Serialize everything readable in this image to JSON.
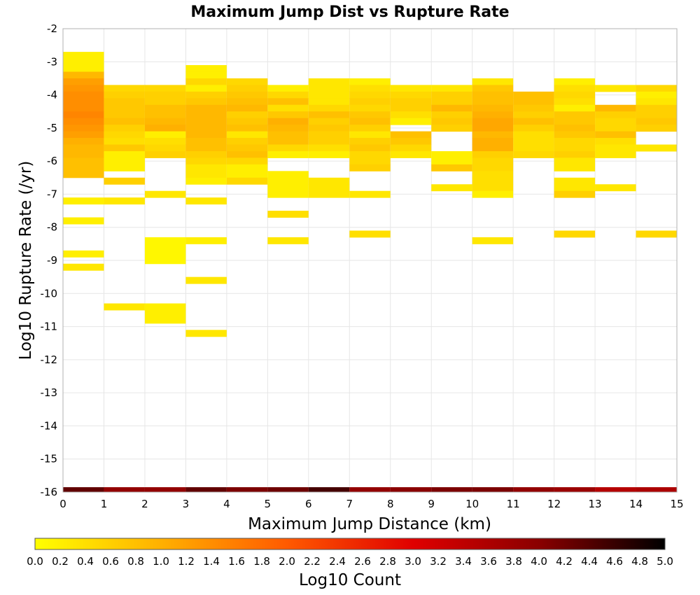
{
  "chart_data": {
    "type": "heatmap",
    "title": "Maximum Jump Dist vs Rupture Rate",
    "xlabel": "Maximum Jump Distance (km)",
    "ylabel": "Log10 Rupture Rate (/yr)",
    "xlim": [
      0,
      15
    ],
    "ylim": [
      -16,
      -2
    ],
    "x_ticks": [
      "0",
      "1",
      "2",
      "3",
      "4",
      "5",
      "6",
      "7",
      "8",
      "9",
      "10",
      "11",
      "12",
      "13",
      "14",
      "15"
    ],
    "y_ticks": [
      "-2",
      "-3",
      "-4",
      "-5",
      "-6",
      "-7",
      "-8",
      "-9",
      "-10",
      "-11",
      "-12",
      "-13",
      "-14",
      "-15",
      "-16"
    ],
    "x_bin_width": 1,
    "y_bin_height": 0.2,
    "colorbar": {
      "label": "Log10 Count",
      "min": 0.0,
      "max": 5.0,
      "tick_labels": [
        "0.0",
        "0.2",
        "0.4",
        "0.6",
        "0.8",
        "1.0",
        "1.2",
        "1.4",
        "1.6",
        "1.8",
        "2.0",
        "2.2",
        "2.4",
        "2.6",
        "2.8",
        "3.0",
        "3.2",
        "3.4",
        "3.6",
        "3.8",
        "4.0",
        "4.2",
        "4.4",
        "4.6",
        "4.8",
        "5.0"
      ],
      "colors": [
        "#ffff00",
        "#ffb000",
        "#ff5a00",
        "#e00000",
        "#8a0000",
        "#000000"
      ]
    },
    "cells": [
      {
        "x": 0,
        "y": -2.7,
        "v": 0.2
      },
      {
        "x": 0,
        "y": -2.9,
        "v": 0.2
      },
      {
        "x": 0,
        "y": -3.1,
        "v": 0.2
      },
      {
        "x": 0,
        "y": -3.3,
        "v": 0.9
      },
      {
        "x": 0,
        "y": -3.5,
        "v": 1.2
      },
      {
        "x": 0,
        "y": -3.7,
        "v": 1.3
      },
      {
        "x": 0,
        "y": -3.9,
        "v": 1.4
      },
      {
        "x": 0,
        "y": -4.1,
        "v": 1.4
      },
      {
        "x": 0,
        "y": -4.3,
        "v": 1.4
      },
      {
        "x": 0,
        "y": -4.5,
        "v": 1.5
      },
      {
        "x": 0,
        "y": -4.7,
        "v": 1.4
      },
      {
        "x": 0,
        "y": -4.9,
        "v": 1.3
      },
      {
        "x": 0,
        "y": -5.1,
        "v": 1.2
      },
      {
        "x": 0,
        "y": -5.3,
        "v": 1.0
      },
      {
        "x": 0,
        "y": -5.5,
        "v": 0.9
      },
      {
        "x": 0,
        "y": -5.7,
        "v": 0.9
      },
      {
        "x": 0,
        "y": -5.9,
        "v": 0.8
      },
      {
        "x": 0,
        "y": -6.1,
        "v": 0.8
      },
      {
        "x": 0,
        "y": -6.3,
        "v": 0.8
      },
      {
        "x": 0,
        "y": -7.1,
        "v": 0.2
      },
      {
        "x": 0,
        "y": -7.7,
        "v": 0.2
      },
      {
        "x": 0,
        "y": -8.7,
        "v": 0.2
      },
      {
        "x": 0,
        "y": -9.1,
        "v": 0.3
      },
      {
        "x": 1,
        "y": -3.7,
        "v": 0.5
      },
      {
        "x": 1,
        "y": -3.9,
        "v": 0.6
      },
      {
        "x": 1,
        "y": -4.1,
        "v": 0.7
      },
      {
        "x": 1,
        "y": -4.3,
        "v": 0.7
      },
      {
        "x": 1,
        "y": -4.5,
        "v": 0.7
      },
      {
        "x": 1,
        "y": -4.7,
        "v": 0.8
      },
      {
        "x": 1,
        "y": -4.9,
        "v": 0.6
      },
      {
        "x": 1,
        "y": -5.1,
        "v": 0.5
      },
      {
        "x": 1,
        "y": -5.3,
        "v": 0.4
      },
      {
        "x": 1,
        "y": -5.5,
        "v": 0.7
      },
      {
        "x": 1,
        "y": -5.7,
        "v": 0.2
      },
      {
        "x": 1,
        "y": -5.9,
        "v": 0.2
      },
      {
        "x": 1,
        "y": -6.1,
        "v": 0.2
      },
      {
        "x": 1,
        "y": -6.5,
        "v": 0.6
      },
      {
        "x": 1,
        "y": -7.1,
        "v": 0.3
      },
      {
        "x": 1,
        "y": -10.3,
        "v": 0.3
      },
      {
        "x": 2,
        "y": -3.7,
        "v": 0.5
      },
      {
        "x": 2,
        "y": -3.9,
        "v": 0.6
      },
      {
        "x": 2,
        "y": -4.1,
        "v": 0.6
      },
      {
        "x": 2,
        "y": -4.3,
        "v": 0.8
      },
      {
        "x": 2,
        "y": -4.5,
        "v": 0.8
      },
      {
        "x": 2,
        "y": -4.7,
        "v": 0.9
      },
      {
        "x": 2,
        "y": -4.9,
        "v": 1.0
      },
      {
        "x": 2,
        "y": -5.1,
        "v": 0.2
      },
      {
        "x": 2,
        "y": -5.3,
        "v": 0.4
      },
      {
        "x": 2,
        "y": -5.5,
        "v": 0.5
      },
      {
        "x": 2,
        "y": -5.7,
        "v": 0.6
      },
      {
        "x": 2,
        "y": -6.9,
        "v": 0.3
      },
      {
        "x": 2,
        "y": -8.3,
        "v": 0.1
      },
      {
        "x": 2,
        "y": -8.5,
        "v": 0.1
      },
      {
        "x": 2,
        "y": -8.7,
        "v": 0.1
      },
      {
        "x": 2,
        "y": -8.9,
        "v": 0.1
      },
      {
        "x": 2,
        "y": -10.3,
        "v": 0.2
      },
      {
        "x": 2,
        "y": -10.5,
        "v": 0.2
      },
      {
        "x": 2,
        "y": -10.7,
        "v": 0.2
      },
      {
        "x": 3,
        "y": -3.1,
        "v": 0.2
      },
      {
        "x": 3,
        "y": -3.3,
        "v": 0.2
      },
      {
        "x": 3,
        "y": -3.5,
        "v": 0.5
      },
      {
        "x": 3,
        "y": -3.7,
        "v": 0.2
      },
      {
        "x": 3,
        "y": -3.9,
        "v": 0.6
      },
      {
        "x": 3,
        "y": -4.1,
        "v": 0.7
      },
      {
        "x": 3,
        "y": -4.3,
        "v": 0.9
      },
      {
        "x": 3,
        "y": -4.5,
        "v": 0.9
      },
      {
        "x": 3,
        "y": -4.7,
        "v": 0.9
      },
      {
        "x": 3,
        "y": -4.9,
        "v": 0.9
      },
      {
        "x": 3,
        "y": -5.1,
        "v": 0.9
      },
      {
        "x": 3,
        "y": -5.3,
        "v": 0.8
      },
      {
        "x": 3,
        "y": -5.5,
        "v": 0.8
      },
      {
        "x": 3,
        "y": -5.7,
        "v": 0.6
      },
      {
        "x": 3,
        "y": -5.9,
        "v": 0.5
      },
      {
        "x": 3,
        "y": -6.1,
        "v": 0.3
      },
      {
        "x": 3,
        "y": -6.3,
        "v": 0.3
      },
      {
        "x": 3,
        "y": -6.5,
        "v": 0.2
      },
      {
        "x": 3,
        "y": -7.1,
        "v": 0.3
      },
      {
        "x": 3,
        "y": -8.3,
        "v": 0.2
      },
      {
        "x": 3,
        "y": -9.5,
        "v": 0.3
      },
      {
        "x": 3,
        "y": -11.1,
        "v": 0.3
      },
      {
        "x": 4,
        "y": -3.5,
        "v": 0.5
      },
      {
        "x": 4,
        "y": -3.7,
        "v": 0.6
      },
      {
        "x": 4,
        "y": -3.9,
        "v": 0.7
      },
      {
        "x": 4,
        "y": -4.1,
        "v": 0.8
      },
      {
        "x": 4,
        "y": -4.3,
        "v": 0.9
      },
      {
        "x": 4,
        "y": -4.5,
        "v": 0.6
      },
      {
        "x": 4,
        "y": -4.7,
        "v": 0.7
      },
      {
        "x": 4,
        "y": -4.9,
        "v": 0.8
      },
      {
        "x": 4,
        "y": -5.1,
        "v": 0.3
      },
      {
        "x": 4,
        "y": -5.3,
        "v": 0.6
      },
      {
        "x": 4,
        "y": -5.5,
        "v": 0.7
      },
      {
        "x": 4,
        "y": -5.7,
        "v": 0.8
      },
      {
        "x": 4,
        "y": -5.9,
        "v": 0.5
      },
      {
        "x": 4,
        "y": -6.1,
        "v": 0.2
      },
      {
        "x": 4,
        "y": -6.3,
        "v": 0.2
      },
      {
        "x": 4,
        "y": -6.5,
        "v": 0.5
      },
      {
        "x": 5,
        "y": -3.7,
        "v": 0.2
      },
      {
        "x": 5,
        "y": -3.9,
        "v": 0.5
      },
      {
        "x": 5,
        "y": -4.1,
        "v": 0.8
      },
      {
        "x": 5,
        "y": -4.3,
        "v": 0.4
      },
      {
        "x": 5,
        "y": -4.5,
        "v": 0.7
      },
      {
        "x": 5,
        "y": -4.7,
        "v": 1.0
      },
      {
        "x": 5,
        "y": -4.9,
        "v": 0.9
      },
      {
        "x": 5,
        "y": -5.1,
        "v": 0.8
      },
      {
        "x": 5,
        "y": -5.3,
        "v": 0.8
      },
      {
        "x": 5,
        "y": -5.5,
        "v": 0.5
      },
      {
        "x": 5,
        "y": -5.7,
        "v": 0.2
      },
      {
        "x": 5,
        "y": -6.3,
        "v": 0.2
      },
      {
        "x": 5,
        "y": -6.5,
        "v": 0.2
      },
      {
        "x": 5,
        "y": -6.7,
        "v": 0.2
      },
      {
        "x": 5,
        "y": -6.9,
        "v": 0.2
      },
      {
        "x": 5,
        "y": -7.5,
        "v": 0.4
      },
      {
        "x": 5,
        "y": -8.3,
        "v": 0.3
      },
      {
        "x": 6,
        "y": -3.5,
        "v": 0.3
      },
      {
        "x": 6,
        "y": -3.7,
        "v": 0.3
      },
      {
        "x": 6,
        "y": -3.9,
        "v": 0.3
      },
      {
        "x": 6,
        "y": -4.1,
        "v": 0.3
      },
      {
        "x": 6,
        "y": -4.3,
        "v": 0.5
      },
      {
        "x": 6,
        "y": -4.5,
        "v": 0.8
      },
      {
        "x": 6,
        "y": -4.7,
        "v": 0.6
      },
      {
        "x": 6,
        "y": -4.9,
        "v": 0.7
      },
      {
        "x": 6,
        "y": -5.1,
        "v": 0.6
      },
      {
        "x": 6,
        "y": -5.3,
        "v": 0.6
      },
      {
        "x": 6,
        "y": -5.5,
        "v": 0.4
      },
      {
        "x": 6,
        "y": -5.7,
        "v": 0.2
      },
      {
        "x": 6,
        "y": -6.5,
        "v": 0.3
      },
      {
        "x": 6,
        "y": -6.7,
        "v": 0.3
      },
      {
        "x": 6,
        "y": -6.9,
        "v": 0.3
      },
      {
        "x": 7,
        "y": -3.5,
        "v": 0.2
      },
      {
        "x": 7,
        "y": -3.7,
        "v": 0.4
      },
      {
        "x": 7,
        "y": -3.9,
        "v": 0.5
      },
      {
        "x": 7,
        "y": -4.1,
        "v": 0.6
      },
      {
        "x": 7,
        "y": -4.3,
        "v": 0.5
      },
      {
        "x": 7,
        "y": -4.5,
        "v": 0.7
      },
      {
        "x": 7,
        "y": -4.7,
        "v": 0.8
      },
      {
        "x": 7,
        "y": -4.9,
        "v": 0.6
      },
      {
        "x": 7,
        "y": -5.1,
        "v": 0.3
      },
      {
        "x": 7,
        "y": -5.3,
        "v": 0.6
      },
      {
        "x": 7,
        "y": -5.5,
        "v": 0.7
      },
      {
        "x": 7,
        "y": -5.7,
        "v": 0.5
      },
      {
        "x": 7,
        "y": -5.9,
        "v": 0.5
      },
      {
        "x": 7,
        "y": -6.1,
        "v": 0.6
      },
      {
        "x": 7,
        "y": -6.9,
        "v": 0.3
      },
      {
        "x": 7,
        "y": -8.1,
        "v": 0.4
      },
      {
        "x": 8,
        "y": -3.7,
        "v": 0.3
      },
      {
        "x": 8,
        "y": -3.9,
        "v": 0.5
      },
      {
        "x": 8,
        "y": -4.1,
        "v": 0.6
      },
      {
        "x": 8,
        "y": -4.3,
        "v": 0.6
      },
      {
        "x": 8,
        "y": -4.5,
        "v": 0.4
      },
      {
        "x": 8,
        "y": -4.7,
        "v": 0.2
      },
      {
        "x": 8,
        "y": -5.1,
        "v": 0.8
      },
      {
        "x": 8,
        "y": -5.3,
        "v": 0.7
      },
      {
        "x": 8,
        "y": -5.5,
        "v": 0.5
      },
      {
        "x": 8,
        "y": -5.7,
        "v": 0.3
      },
      {
        "x": 9,
        "y": -3.7,
        "v": 0.3
      },
      {
        "x": 9,
        "y": -3.9,
        "v": 0.6
      },
      {
        "x": 9,
        "y": -4.1,
        "v": 0.6
      },
      {
        "x": 9,
        "y": -4.3,
        "v": 0.9
      },
      {
        "x": 9,
        "y": -4.5,
        "v": 0.6
      },
      {
        "x": 9,
        "y": -4.7,
        "v": 0.7
      },
      {
        "x": 9,
        "y": -4.9,
        "v": 0.6
      },
      {
        "x": 9,
        "y": -5.7,
        "v": 0.2
      },
      {
        "x": 9,
        "y": -5.9,
        "v": 0.2
      },
      {
        "x": 9,
        "y": -6.1,
        "v": 0.7
      },
      {
        "x": 9,
        "y": -6.7,
        "v": 0.3
      },
      {
        "x": 10,
        "y": -3.5,
        "v": 0.3
      },
      {
        "x": 10,
        "y": -3.7,
        "v": 0.7
      },
      {
        "x": 10,
        "y": -3.9,
        "v": 0.8
      },
      {
        "x": 10,
        "y": -4.1,
        "v": 0.8
      },
      {
        "x": 10,
        "y": -4.3,
        "v": 0.9
      },
      {
        "x": 10,
        "y": -4.5,
        "v": 1.0
      },
      {
        "x": 10,
        "y": -4.7,
        "v": 1.1
      },
      {
        "x": 10,
        "y": -4.9,
        "v": 1.1
      },
      {
        "x": 10,
        "y": -5.1,
        "v": 0.9
      },
      {
        "x": 10,
        "y": -5.3,
        "v": 1.0
      },
      {
        "x": 10,
        "y": -5.5,
        "v": 1.0
      },
      {
        "x": 10,
        "y": -5.7,
        "v": 0.6
      },
      {
        "x": 10,
        "y": -5.9,
        "v": 0.5
      },
      {
        "x": 10,
        "y": -6.1,
        "v": 0.5
      },
      {
        "x": 10,
        "y": -6.3,
        "v": 0.4
      },
      {
        "x": 10,
        "y": -6.5,
        "v": 0.4
      },
      {
        "x": 10,
        "y": -6.7,
        "v": 0.4
      },
      {
        "x": 10,
        "y": -6.9,
        "v": 0.2
      },
      {
        "x": 10,
        "y": -8.3,
        "v": 0.3
      },
      {
        "x": 11,
        "y": -3.9,
        "v": 0.8
      },
      {
        "x": 11,
        "y": -4.1,
        "v": 0.8
      },
      {
        "x": 11,
        "y": -4.3,
        "v": 0.7
      },
      {
        "x": 11,
        "y": -4.5,
        "v": 0.6
      },
      {
        "x": 11,
        "y": -4.7,
        "v": 0.8
      },
      {
        "x": 11,
        "y": -4.9,
        "v": 0.6
      },
      {
        "x": 11,
        "y": -5.1,
        "v": 0.4
      },
      {
        "x": 11,
        "y": -5.3,
        "v": 0.4
      },
      {
        "x": 11,
        "y": -5.5,
        "v": 0.4
      },
      {
        "x": 11,
        "y": -5.7,
        "v": 0.5
      },
      {
        "x": 12,
        "y": -3.5,
        "v": 0.2
      },
      {
        "x": 12,
        "y": -3.7,
        "v": 0.4
      },
      {
        "x": 12,
        "y": -3.9,
        "v": 0.5
      },
      {
        "x": 12,
        "y": -4.1,
        "v": 0.4
      },
      {
        "x": 12,
        "y": -4.3,
        "v": 0.2
      },
      {
        "x": 12,
        "y": -4.5,
        "v": 0.7
      },
      {
        "x": 12,
        "y": -4.7,
        "v": 0.7
      },
      {
        "x": 12,
        "y": -4.9,
        "v": 0.8
      },
      {
        "x": 12,
        "y": -5.1,
        "v": 0.7
      },
      {
        "x": 12,
        "y": -5.3,
        "v": 0.5
      },
      {
        "x": 12,
        "y": -5.5,
        "v": 0.5
      },
      {
        "x": 12,
        "y": -5.7,
        "v": 0.6
      },
      {
        "x": 12,
        "y": -5.9,
        "v": 0.3
      },
      {
        "x": 12,
        "y": -6.1,
        "v": 0.3
      },
      {
        "x": 12,
        "y": -6.5,
        "v": 0.3
      },
      {
        "x": 12,
        "y": -6.7,
        "v": 0.3
      },
      {
        "x": 12,
        "y": -6.9,
        "v": 0.6
      },
      {
        "x": 12,
        "y": -8.1,
        "v": 0.5
      },
      {
        "x": 13,
        "y": -3.7,
        "v": 0.3
      },
      {
        "x": 13,
        "y": -4.3,
        "v": 0.9
      },
      {
        "x": 13,
        "y": -4.5,
        "v": 0.6
      },
      {
        "x": 13,
        "y": -4.7,
        "v": 0.5
      },
      {
        "x": 13,
        "y": -4.9,
        "v": 0.5
      },
      {
        "x": 13,
        "y": -5.1,
        "v": 0.8
      },
      {
        "x": 13,
        "y": -5.3,
        "v": 0.4
      },
      {
        "x": 13,
        "y": -5.5,
        "v": 0.3
      },
      {
        "x": 13,
        "y": -5.7,
        "v": 0.3
      },
      {
        "x": 13,
        "y": -6.7,
        "v": 0.3
      },
      {
        "x": 14,
        "y": -3.7,
        "v": 0.5
      },
      {
        "x": 14,
        "y": -3.9,
        "v": 0.2
      },
      {
        "x": 14,
        "y": -4.1,
        "v": 0.3
      },
      {
        "x": 14,
        "y": -4.3,
        "v": 0.6
      },
      {
        "x": 14,
        "y": -4.5,
        "v": 0.6
      },
      {
        "x": 14,
        "y": -4.7,
        "v": 0.7
      },
      {
        "x": 14,
        "y": -4.9,
        "v": 0.6
      },
      {
        "x": 14,
        "y": -5.5,
        "v": 0.3
      },
      {
        "x": 14,
        "y": -8.1,
        "v": 0.5
      }
    ],
    "floor_row": {
      "y": -16,
      "values": [
        4.3,
        3.9,
        3.9,
        4.3,
        4.1,
        4.2,
        4.5,
        3.9,
        4.0,
        4.1,
        4.1,
        3.9,
        3.8,
        3.5,
        3.6
      ]
    }
  }
}
